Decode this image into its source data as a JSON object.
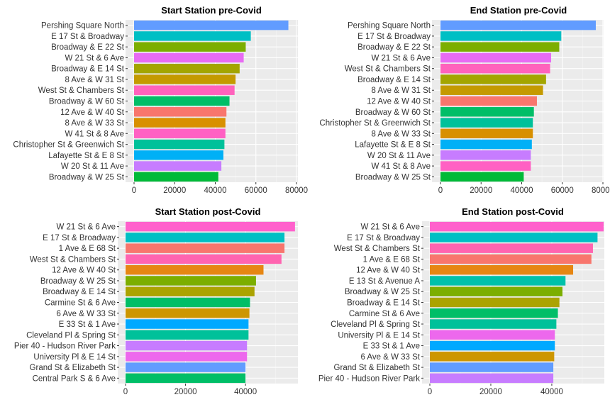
{
  "chart_data": [
    {
      "type": "bar",
      "orientation": "horizontal",
      "title": "Start Station pre-Covid",
      "xlabel": "",
      "ylabel": "",
      "xlim": [
        0,
        80000
      ],
      "x_ticks": [
        "0",
        "20000",
        "40000",
        "60000",
        "80000"
      ],
      "grid": true,
      "categories": [
        "Pershing Square North",
        "E 17 St & Broadway",
        "Broadway & E 22 St",
        "W 21 St & 6 Ave",
        "Broadway & E 14 St",
        "8 Ave & W 31 St",
        "West St & Chambers St",
        "Broadway & W 60 St",
        "12 Ave & W 40 St",
        "8 Ave & W 33 St",
        "W 41 St & 8 Ave",
        "Christopher St & Greenwich St",
        "Lafayette St & E 8 St",
        "W 20 St & 11 Ave",
        "Broadway & W 25 St"
      ],
      "values": [
        76000,
        57500,
        55000,
        54000,
        52000,
        50000,
        49500,
        47000,
        45500,
        45000,
        45000,
        44500,
        44000,
        43000,
        41500
      ],
      "colors": [
        "#619CFF",
        "#00BFC4",
        "#7CAE00",
        "#E76BF3",
        "#A3A500",
        "#C49A00",
        "#FF62BC",
        "#00BE67",
        "#F8766D",
        "#D89000",
        "#FF61C3",
        "#00C19A",
        "#00B0F6",
        "#C77CFF",
        "#00BA38"
      ]
    },
    {
      "type": "bar",
      "orientation": "horizontal",
      "title": "End Station pre-Covid",
      "xlabel": "",
      "ylabel": "",
      "xlim": [
        0,
        80000
      ],
      "x_ticks": [
        "0",
        "20000",
        "40000",
        "60000",
        "80000"
      ],
      "grid": true,
      "categories": [
        "Pershing Square North",
        "E 17 St & Broadway",
        "Broadway & E 22 St",
        "W 21 St & 6 Ave",
        "West St & Chambers St",
        "Broadway & E 14 St",
        "8 Ave & W 31 St",
        "12 Ave & W 40 St",
        "Broadway & W 60 St",
        "Christopher St & Greenwich St",
        "8 Ave & W 33 St",
        "Lafayette St & E 8 St",
        "W 20 St & 11 Ave",
        "W 41 St & 8 Ave",
        "Broadway & W 25 St"
      ],
      "values": [
        76500,
        59500,
        58500,
        54500,
        54000,
        52000,
        50500,
        47500,
        46000,
        45500,
        45500,
        45000,
        44500,
        44500,
        41000
      ],
      "colors": [
        "#619CFF",
        "#00BFC4",
        "#7CAE00",
        "#E76BF3",
        "#FF62BC",
        "#A3A500",
        "#C49A00",
        "#F8766D",
        "#00BE67",
        "#00C19A",
        "#D89000",
        "#00B0F6",
        "#C77CFF",
        "#FF61C3",
        "#00BA38"
      ]
    },
    {
      "type": "bar",
      "orientation": "horizontal",
      "title": "Start Station post-Covid",
      "xlabel": "",
      "ylabel": "",
      "xlim": [
        0,
        57000
      ],
      "x_ticks": [
        "0",
        "20000",
        "40000"
      ],
      "grid": true,
      "categories": [
        "W 21 St & 6 Ave",
        "E 17 St & Broadway",
        "1 Ave & E 68 St",
        "West St & Chambers St",
        "12 Ave & W 40 St",
        "Broadway & W 25 St",
        "Broadway & E 14 St",
        "Carmine St & 6 Ave",
        "6 Ave & W 33 St",
        "E 33 St & 1 Ave",
        "Cleveland Pl & Spring St",
        "Pier 40 - Hudson River Park",
        "University Pl & E 14 St",
        "Grand St & Elizabeth St",
        "Central Park S & 6 Ave"
      ],
      "values": [
        56500,
        53000,
        53000,
        52000,
        46000,
        43500,
        43000,
        41500,
        41300,
        41000,
        41000,
        40500,
        40500,
        40000,
        40000
      ],
      "colors": [
        "#FF61CC",
        "#00BFC4",
        "#F8766D",
        "#FF64B0",
        "#E68613",
        "#7CAE00",
        "#ABA300",
        "#00BE67",
        "#CD9600",
        "#00A9FF",
        "#00C19A",
        "#C77CFF",
        "#ED68ED",
        "#619CFF",
        "#00BE67"
      ]
    },
    {
      "type": "bar",
      "orientation": "horizontal",
      "title": "End Station post-Covid",
      "xlabel": "",
      "ylabel": "",
      "xlim": [
        0,
        57000
      ],
      "x_ticks": [
        "0",
        "20000",
        "40000"
      ],
      "grid": true,
      "categories": [
        "W 21 St & 6 Ave",
        "E 17 St & Broadway",
        "West St & Chambers St",
        "1 Ave & E 68 St",
        "12 Ave & W 40 St",
        "E 13 St & Avenue A",
        "Broadway & W 25 St",
        "Broadway & E 14 St",
        "Carmine St & 6 Ave",
        "Cleveland Pl & Spring St",
        "University Pl & E 14 St",
        "E 33 St & 1 Ave",
        "6 Ave & W 33 St",
        "Grand St & Elizabeth St",
        "Pier 40 - Hudson River Park"
      ],
      "values": [
        57000,
        55000,
        53500,
        53000,
        47000,
        44500,
        43500,
        42500,
        42000,
        41500,
        41000,
        41000,
        40800,
        40500,
        40500
      ],
      "colors": [
        "#FF61CC",
        "#00BFC4",
        "#FF64B0",
        "#F8766D",
        "#E68613",
        "#00C1AA",
        "#7CAE00",
        "#ABA300",
        "#00BE67",
        "#00C19A",
        "#ED68ED",
        "#00A9FF",
        "#CD9600",
        "#619CFF",
        "#C77CFF"
      ]
    }
  ]
}
